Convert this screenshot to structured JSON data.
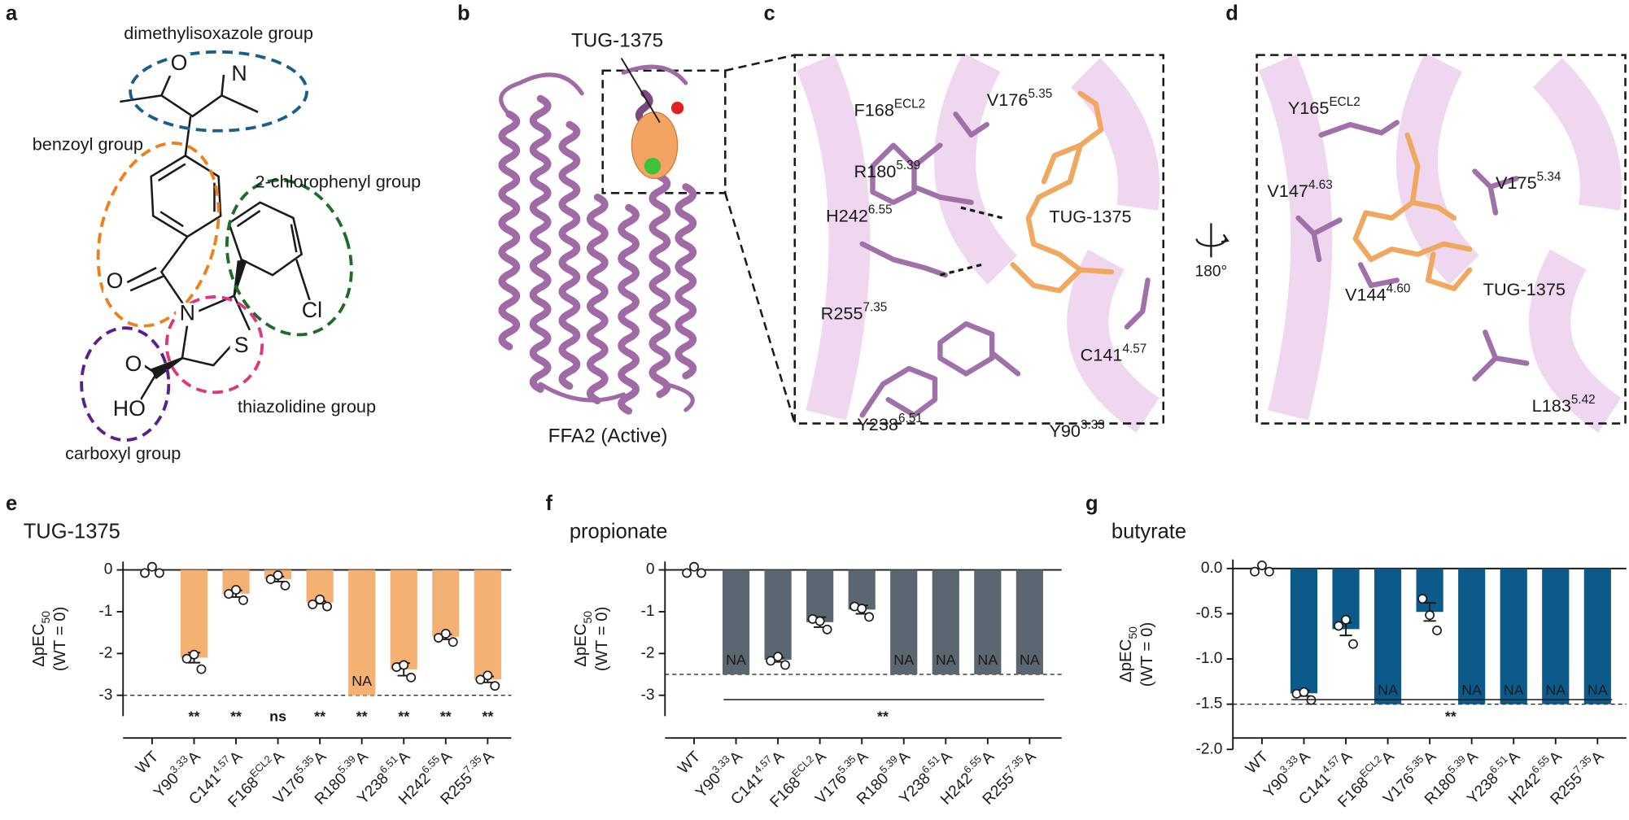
{
  "panel_labels": [
    "a",
    "b",
    "c",
    "d",
    "e",
    "f",
    "g"
  ],
  "panel_a": {
    "groups": [
      "dimethylisoxazole group",
      "benzoyl group",
      "2-chlorophenyl group",
      "thiazolidine group",
      "carboxyl group"
    ],
    "atoms": [
      "O",
      "N",
      "O",
      "N",
      "Cl",
      "S",
      "O",
      "HO"
    ]
  },
  "panel_b": {
    "ligand": "TUG-1375",
    "receptor": "FFA2 (Active)"
  },
  "panel_c": {
    "ligand": "TUG-1375",
    "residues": [
      {
        "name": "F168",
        "sup": "ECL2"
      },
      {
        "name": "V176",
        "sup": "5.35"
      },
      {
        "name": "R180",
        "sup": "5.39"
      },
      {
        "name": "H242",
        "sup": "6.55"
      },
      {
        "name": "R255",
        "sup": "7.35"
      },
      {
        "name": "C141",
        "sup": "4.57"
      },
      {
        "name": "Y238",
        "sup": "6.51"
      },
      {
        "name": "Y90",
        "sup": "3.33"
      }
    ]
  },
  "panel_d": {
    "ligand": "TUG-1375",
    "rotation": "180°",
    "residues": [
      {
        "name": "Y165",
        "sup": "ECL2"
      },
      {
        "name": "V147",
        "sup": "4.63"
      },
      {
        "name": "V175",
        "sup": "5.34"
      },
      {
        "name": "V144",
        "sup": "4.60"
      },
      {
        "name": "L183",
        "sup": "5.42"
      }
    ]
  },
  "chart_data": [
    {
      "type": "bar",
      "title": "TUG-1375",
      "title_color": "#f0a060",
      "y_label": {
        "main": "ΔpEC",
        "sub": "50",
        "second": "(WT = 0)"
      },
      "categories": [
        {
          "base": "WT"
        },
        {
          "base": "Y90",
          "sup": "3.33",
          "suffix": "A"
        },
        {
          "base": "C141",
          "sup": "4.57",
          "suffix": "A"
        },
        {
          "base": "F168",
          "sup": "ECL2",
          "suffix": "A"
        },
        {
          "base": "V176",
          "sup": "5.35",
          "suffix": "A"
        },
        {
          "base": "R180",
          "sup": "5.39",
          "suffix": "A"
        },
        {
          "base": "Y238",
          "sup": "6.51",
          "suffix": "A"
        },
        {
          "base": "H242",
          "sup": "6.55",
          "suffix": "A"
        },
        {
          "base": "R255",
          "sup": "7.35",
          "suffix": "A"
        }
      ],
      "values": [
        0,
        -2.1,
        -0.57,
        -0.22,
        -0.78,
        null,
        -2.38,
        -1.6,
        -2.62
      ],
      "errors": [
        null,
        0.12,
        0.08,
        0.06,
        0.03,
        null,
        0.15,
        0.06,
        0.07
      ],
      "points": [
        [
          0,
          0,
          0
        ],
        [
          -2.05,
          -2.1,
          -2.3
        ],
        [
          -0.5,
          -0.55,
          -0.65
        ],
        [
          -0.15,
          -0.2,
          -0.3
        ],
        [
          -0.75,
          -0.78,
          -0.8
        ],
        null,
        [
          -2.25,
          -2.35,
          -2.5
        ],
        [
          -1.55,
          -1.6,
          -1.65
        ],
        [
          -2.55,
          -2.6,
          -2.7
        ]
      ],
      "threshold": -3,
      "na_label": "NA",
      "na_color": "#1a1a1a",
      "significance": [
        null,
        "**",
        "**",
        "ns",
        "**",
        "**",
        "**",
        "**",
        "**"
      ],
      "color": "#f5b173",
      "ylim": [
        -3.5,
        0.2
      ],
      "yticks": [
        0,
        -1,
        -2,
        -3
      ]
    },
    {
      "type": "bar",
      "title": "propionate",
      "title_color": "#5c6670",
      "y_label": {
        "main": "ΔpEC",
        "sub": "50",
        "second": "(WT = 0)"
      },
      "categories": [
        {
          "base": "WT"
        },
        {
          "base": "Y90",
          "sup": "3.33",
          "suffix": "A"
        },
        {
          "base": "C141",
          "sup": "4.57",
          "suffix": "A"
        },
        {
          "base": "F168",
          "sup": "ECL2",
          "suffix": "A"
        },
        {
          "base": "V176",
          "sup": "5.35",
          "suffix": "A"
        },
        {
          "base": "R180",
          "sup": "5.39",
          "suffix": "A"
        },
        {
          "base": "Y238",
          "sup": "6.51",
          "suffix": "A"
        },
        {
          "base": "H242",
          "sup": "6.55",
          "suffix": "A"
        },
        {
          "base": "R255",
          "sup": "7.35",
          "suffix": "A"
        }
      ],
      "values": [
        0,
        null,
        -2.15,
        -1.25,
        -0.95,
        null,
        null,
        null,
        null
      ],
      "errors": [
        null,
        null,
        0.05,
        0.12,
        0.1,
        null,
        null,
        null,
        null
      ],
      "points": [
        [
          0,
          0,
          0
        ],
        null,
        [
          -2.1,
          -2.15,
          -2.2
        ],
        [
          -1.1,
          -1.3,
          -1.35
        ],
        [
          -0.8,
          -1.0,
          -1.05
        ],
        null,
        null,
        null,
        null
      ],
      "threshold": -2.5,
      "na_label": "NA",
      "na_color": "#ffffff",
      "significance": "**",
      "color": "#5c6670",
      "ylim": [
        -3.5,
        0.2
      ],
      "yticks": [
        0,
        -1,
        -2,
        -3
      ]
    },
    {
      "type": "bar",
      "title": "butyrate",
      "title_color": "#0b5a8a",
      "y_label": {
        "main": "ΔpEC",
        "sub": "50",
        "second": "(WT = 0)"
      },
      "categories": [
        {
          "base": "WT"
        },
        {
          "base": "Y90",
          "sup": "3.33",
          "suffix": "A"
        },
        {
          "base": "C141",
          "sup": "4.57",
          "suffix": "A"
        },
        {
          "base": "F168",
          "sup": "ECL2",
          "suffix": "A"
        },
        {
          "base": "V176",
          "sup": "5.35",
          "suffix": "A"
        },
        {
          "base": "R180",
          "sup": "5.39",
          "suffix": "A"
        },
        {
          "base": "Y238",
          "sup": "6.51",
          "suffix": "A"
        },
        {
          "base": "H242",
          "sup": "6.55",
          "suffix": "A"
        },
        {
          "base": "R255",
          "sup": "7.35",
          "suffix": "A"
        }
      ],
      "values": [
        0,
        -1.38,
        -0.67,
        null,
        -0.48,
        null,
        null,
        null,
        null
      ],
      "errors": [
        null,
        0.03,
        0.07,
        null,
        0.1,
        null,
        null,
        null,
        null
      ],
      "points": [
        [
          0,
          0,
          0
        ],
        [
          -1.35,
          -1.4,
          -1.42
        ],
        [
          -0.6,
          -0.6,
          -0.8
        ],
        null,
        [
          -0.3,
          -0.55,
          -0.65
        ],
        null,
        null,
        null,
        null
      ],
      "threshold": -1.5,
      "na_label": "NA",
      "na_color": "#ffffff",
      "significance": "**",
      "color": "#0b5a8a",
      "ylim": [
        -2.0,
        0.1
      ],
      "yticks": [
        {
          "value": 0,
          "label": "0.0"
        },
        -0.5,
        {
          "value": -1,
          "label": "-1.0"
        },
        -1.5,
        {
          "value": -2,
          "label": "-2.0"
        }
      ]
    }
  ]
}
